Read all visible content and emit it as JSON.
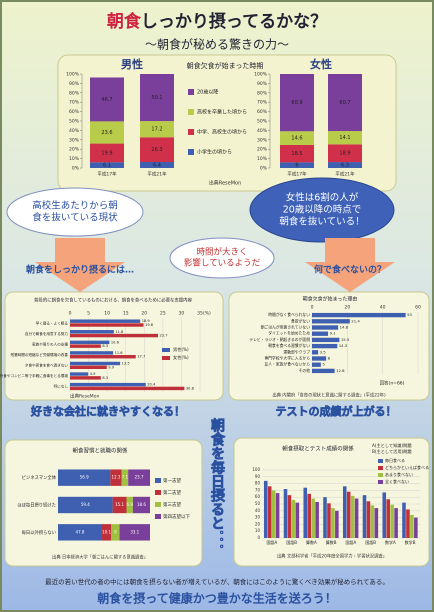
{
  "header": {
    "title_accent": "朝食",
    "title_rest": "しっかり摂ってるかな？",
    "subtitle": "〜朝食が秘める驚きの力〜"
  },
  "callouts": {
    "left": [
      "高校生あたりから朝",
      "食を抜いている現状"
    ],
    "right": [
      "女性は6割の人が",
      "20歳以降の時点で",
      "朝食を抜いている！"
    ],
    "center": [
      "時間が大きく",
      "影響しているようだ"
    ]
  },
  "arrows": {
    "left": "朝食をしっかり摂るには…",
    "right": "何で食べないの？"
  },
  "banners": {
    "left": "好きな会社に就きやすくなる！",
    "right": "テストの成績が上がる！",
    "center": "朝食を毎日摂ると．．．"
  },
  "footer": {
    "note": "最近の若い世代の者の中には朝食を摂らない者が増えているが、朝食にはこのように驚くべき効果が秘められてある。",
    "slogan": "朝食を摂って健康かつ豊かな生活を送ろう！"
  },
  "chart_data": [
    {
      "type": "stacked_bar",
      "title": "朝食欠食が始まった時期",
      "groups": [
        "男性",
        "女性"
      ],
      "categories": [
        "平成17年",
        "平成21年",
        "平成17年",
        "平成21年"
      ],
      "series": [
        {
          "name": "小学生の頃から",
          "color": "#3f5fb0",
          "values": [
            6.1,
            6.4,
            6.0,
            6.3
          ]
        },
        {
          "name": "中学、高校生の頃から",
          "color": "#d0304a",
          "values": [
            19.9,
            26.3,
            18.5,
            18.9
          ]
        },
        {
          "name": "高校を卒業した頃から",
          "color": "#b8cc4a",
          "values": [
            23.6,
            17.2,
            14.6,
            14.1
          ]
        },
        {
          "name": "20歳以降",
          "color": "#7a3f9a",
          "values": [
            46.7,
            50.1,
            60.9,
            60.7
          ]
        }
      ],
      "ylim": [
        0,
        100
      ],
      "yticks": [
        {
          "value": 0,
          "label": "0%"
        },
        {
          "value": 10,
          "label": "10%"
        },
        {
          "value": 20,
          "label": "20%"
        },
        {
          "value": 30,
          "label": "30%"
        },
        {
          "value": 40,
          "label": "40%"
        },
        {
          "value": 50,
          "label": "50%"
        },
        {
          "value": 60,
          "label": "60%"
        },
        {
          "value": 70,
          "label": "70%"
        },
        {
          "value": 80,
          "label": "80%"
        },
        {
          "value": 90,
          "label": "90%"
        },
        {
          "value": 100,
          "label": "100%"
        }
      ],
      "source": "出典ReseMon"
    },
    {
      "type": "hbar_grouped",
      "title": "普段的に朝食を欠食しているものにおける、朝食を食べるために必要な支援内容",
      "categories": [
        "早く寝る・よく眠る",
        "自分で朝食を用意する努力",
        "家族や周りの人の支援",
        "残業時間の短縮など労働環境の改善",
        "夕食や夜食を食べ過ぎない",
        "外食やコンビニ等で手軽に食事をとる環境",
        "特になし"
      ],
      "series": [
        {
          "name": "男性(%)",
          "color": "#3f5fb0",
          "values": [
            18.9,
            11.8,
            10.6,
            11.6,
            13.5,
            4.9,
            20.4
          ]
        },
        {
          "name": "女性(%)",
          "color": "#c0303a",
          "values": [
            19.8,
            23.7,
            8.3,
            17.7,
            9.9,
            8.3,
            30.8
          ]
        }
      ],
      "xlim": [
        0,
        35
      ],
      "xticks": [
        0,
        5,
        10,
        15,
        20,
        25,
        30,
        35
      ],
      "x_label": "(%)",
      "source": "出典ReseMon"
    },
    {
      "type": "hbar",
      "title": "朝食欠食が始まった理由",
      "categories": [
        "時間がなく食べられない",
        "食欲がない",
        "朝ごはんが用意されていない",
        "ダイエットを始めたため",
        "テレビ・ラジオ・朝起きるのが面倒",
        "朝食を食べる習慣がない",
        "運動部やクラブ",
        "専門学校や大学に入るから",
        "友人・家族が食べないから",
        "その他"
      ],
      "values": [
        53.0,
        21.4,
        14.8,
        9.1,
        15.5,
        14.3,
        3.5,
        8.0,
        5.0,
        12.8
      ],
      "color": "#3f5fb0",
      "xlim": [
        0,
        60
      ],
      "xticks": [
        0,
        20,
        40,
        60
      ],
      "note": "回答(n=66)",
      "source": "出典 内閣府「食育の現状と意識に関する調査」(平成22年)"
    },
    {
      "type": "hbar_stacked",
      "title": "朝食習慣と就職の関係",
      "categories": [
        "ビジネスマン全体",
        "ほぼ毎日摂り続けた",
        "毎日以外摂らない"
      ],
      "series": [
        {
          "name": "第一志望",
          "color": "#3f5fb0",
          "values": [
            56.9,
            59.4,
            47.8
          ]
        },
        {
          "name": "第二志望",
          "color": "#c0303a",
          "values": [
            12.3,
            15.1,
            10.1
          ]
        },
        {
          "name": "第三志望",
          "color": "#a0c040",
          "values": [
            7.1,
            6.9,
            9.0
          ]
        },
        {
          "name": "第四志望以下",
          "color": "#7a3f9a",
          "values": [
            23.7,
            18.6,
            33.1
          ]
        }
      ],
      "xlim": [
        0,
        100
      ],
      "source": "出典 日本経済大学「朝ごはんに関する意識調査」"
    },
    {
      "type": "bar_grouped",
      "title": "朝食摂取とテスト成績の関係",
      "categories": [
        "国語A",
        "国語B",
        "算数A",
        "算数B",
        "国語A",
        "国語B",
        "数学A",
        "数学B"
      ],
      "series": [
        {
          "name": "毎日食べる",
          "color": "#3f5fb0",
          "values": [
            84,
            72,
            74,
            60,
            76,
            63,
            67,
            52
          ]
        },
        {
          "name": "どちらかといえば食べる",
          "color": "#c0303a",
          "values": [
            76,
            63,
            65,
            51,
            68,
            54,
            57,
            42
          ]
        },
        {
          "name": "あまり食べない",
          "color": "#a0c040",
          "values": [
            70,
            56,
            58,
            44,
            62,
            48,
            49,
            34
          ]
        },
        {
          "name": "全く食べない",
          "color": "#7a3f9a",
          "values": [
            66,
            52,
            53,
            40,
            58,
            44,
            44,
            30
          ]
        }
      ],
      "ylim": [
        0,
        100
      ],
      "yticks": [
        0,
        10,
        20,
        30,
        40,
        50,
        60,
        70,
        80,
        90,
        100
      ],
      "notes": [
        "A(主として知識)問題",
        "B(主として活用)問題"
      ],
      "source": "出典 文部科学省「平成20年度全国学力・学習状況調査」"
    }
  ]
}
